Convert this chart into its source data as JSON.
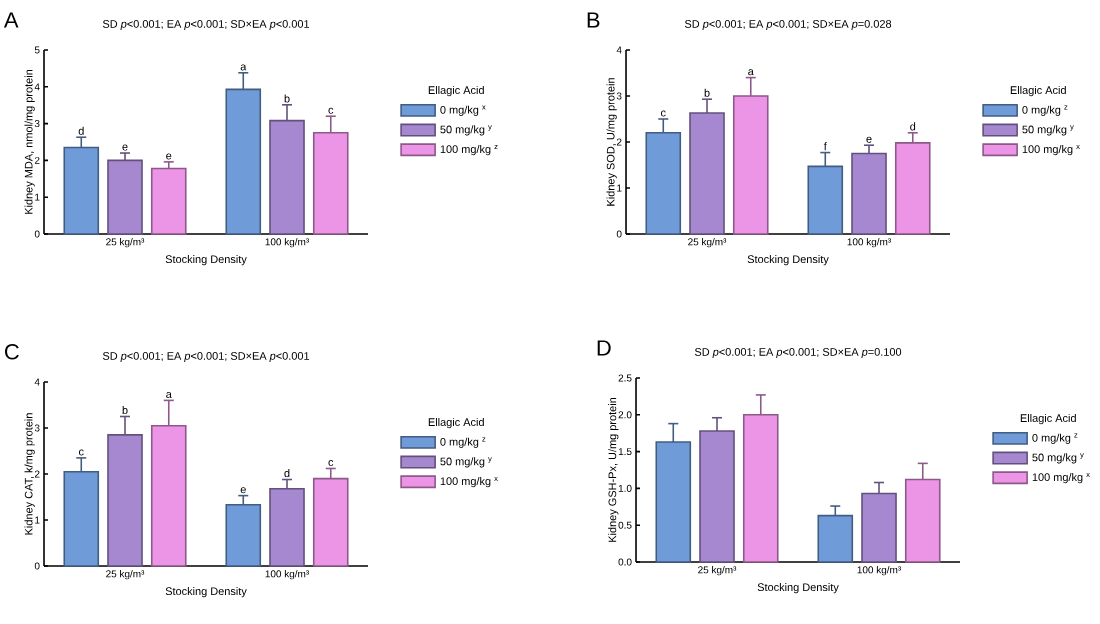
{
  "chart_data": [
    {
      "type": "bar",
      "title": "A",
      "subtitle": "SD *p*<0.001; EA *p*<0.001; SD×EA *p*<0.001",
      "xlabel": "Stocking Density",
      "ylabel": "Kidney MDA, nmol/mg protein",
      "categories": [
        "25 kg/m³",
        "100 kg/m³"
      ],
      "ylim": [
        0,
        5
      ],
      "yticks": [
        0,
        1,
        2,
        3,
        4,
        5
      ],
      "legend": "right",
      "legend_title": "Ellagic Acid",
      "series": [
        {
          "name": "0 mg/kg $^{x}$",
          "color": "#6f9bd8",
          "values": [
            2.35,
            3.93
          ],
          "errors": [
            0.28,
            0.45
          ],
          "value_labels": [
            "d",
            "a"
          ]
        },
        {
          "name": "50 mg/kg $^{y}$",
          "color": "#a588d0",
          "values": [
            2.0,
            3.08
          ],
          "errors": [
            0.2,
            0.43
          ],
          "value_labels": [
            "e",
            "b"
          ]
        },
        {
          "name": "100 mg/kg $^{z}$",
          "color": "#ec94e6",
          "values": [
            1.78,
            2.75
          ],
          "errors": [
            0.18,
            0.45
          ],
          "value_labels": [
            "e",
            "c"
          ]
        }
      ]
    },
    {
      "type": "bar",
      "title": "B",
      "subtitle": "SD *p*<0.001; EA *p*<0.001; SD×EA *p*=0.028",
      "xlabel": "Stocking Density",
      "ylabel": "Kidney SOD, U/mg protein",
      "categories": [
        "25 kg/m³",
        "100 kg/m³"
      ],
      "ylim": [
        0,
        4
      ],
      "yticks": [
        0,
        1,
        2,
        3,
        4
      ],
      "legend": "right",
      "legend_title": "Ellagic Acid",
      "series": [
        {
          "name": "0 mg/kg $^{z}$",
          "color": "#6f9bd8",
          "values": [
            2.2,
            1.47
          ],
          "errors": [
            0.3,
            0.3
          ],
          "value_labels": [
            "c",
            "f"
          ]
        },
        {
          "name": "50 mg/kg $^{y}$",
          "color": "#a588d0",
          "values": [
            2.63,
            1.75
          ],
          "errors": [
            0.3,
            0.18
          ],
          "value_labels": [
            "b",
            "e"
          ]
        },
        {
          "name": "100 mg/kg $^{x}$",
          "color": "#ec94e6",
          "values": [
            3.0,
            1.98
          ],
          "errors": [
            0.4,
            0.22
          ],
          "value_labels": [
            "a",
            "d"
          ]
        }
      ]
    },
    {
      "type": "bar",
      "title": "C",
      "subtitle": "SD *p*<0.001; EA *p*<0.001; SD×EA *p*<0.001",
      "xlabel": "Stocking Density",
      "ylabel": "Kidney CAT, k/mg protein",
      "categories": [
        "25 kg/m³",
        "100 kg/m³"
      ],
      "ylim": [
        0,
        4
      ],
      "yticks": [
        0,
        1,
        2,
        3,
        4
      ],
      "legend": "right",
      "legend_title": "Ellagic Acid",
      "series": [
        {
          "name": "0 mg/kg $^{z}$",
          "color": "#6f9bd8",
          "values": [
            2.05,
            1.33
          ],
          "errors": [
            0.3,
            0.2
          ],
          "value_labels": [
            "c",
            "e"
          ]
        },
        {
          "name": "50 mg/kg $^{y}$",
          "color": "#a588d0",
          "values": [
            2.85,
            1.68
          ],
          "errors": [
            0.4,
            0.2
          ],
          "value_labels": [
            "b",
            "d"
          ]
        },
        {
          "name": "100 mg/kg $^{x}$",
          "color": "#ec94e6",
          "values": [
            3.05,
            1.9
          ],
          "errors": [
            0.55,
            0.22
          ],
          "value_labels": [
            "a",
            "c"
          ]
        }
      ]
    },
    {
      "type": "bar",
      "title": "D",
      "subtitle": "SD *p*<0.001; EA *p*<0.001; SD×EA *p*=0.100",
      "xlabel": "Stocking Density",
      "ylabel": "Kidney GSH-Px, U/mg protein",
      "categories": [
        "25 kg/m³",
        "100 kg/m³"
      ],
      "ylim": [
        0,
        2.5
      ],
      "yticks": [
        {
          "value": 0,
          "label": "0.0"
        },
        {
          "value": 0.5,
          "label": "0.5"
        },
        {
          "value": 1,
          "label": "1.0"
        },
        {
          "value": 1.5,
          "label": "1.5"
        },
        {
          "value": 2,
          "label": "2.0"
        },
        {
          "value": 2.5,
          "label": "2.5"
        }
      ],
      "legend": "right",
      "legend_title": "Ellagic Acid",
      "series": [
        {
          "name": "0 mg/kg $^{z}$",
          "color": "#6f9bd8",
          "values": [
            1.63,
            0.63
          ],
          "errors": [
            0.25,
            0.13
          ]
        },
        {
          "name": "50 mg/kg $^{y}$",
          "color": "#a588d0",
          "values": [
            1.78,
            0.93
          ],
          "errors": [
            0.18,
            0.15
          ]
        },
        {
          "name": "100 mg/kg $^{x}$",
          "color": "#ec94e6",
          "values": [
            2.0,
            1.12
          ],
          "errors": [
            0.27,
            0.22
          ]
        }
      ]
    }
  ]
}
